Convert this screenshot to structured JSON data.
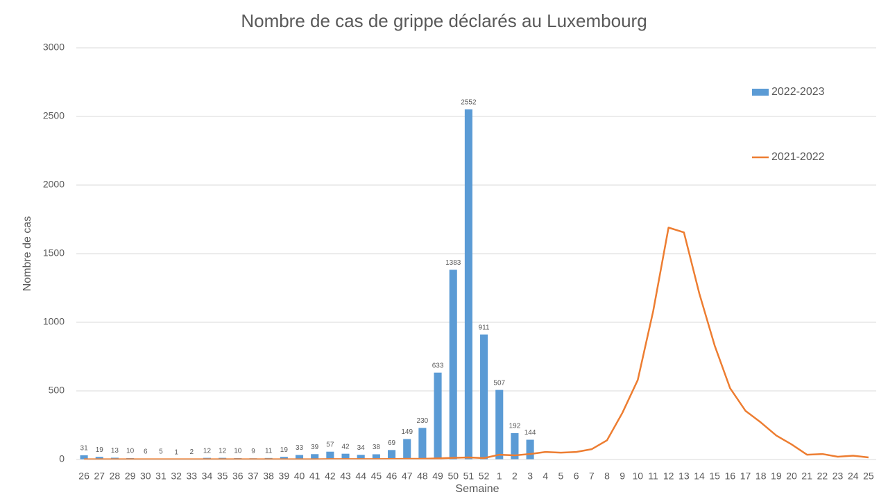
{
  "chart_data": {
    "type": "bar_line",
    "title": "Nombre de cas de grippe déclarés au Luxembourg",
    "x_label": "Semaine",
    "y_label": "Nombre de cas",
    "categories": [
      "26",
      "27",
      "28",
      "29",
      "30",
      "31",
      "32",
      "33",
      "34",
      "35",
      "36",
      "37",
      "38",
      "39",
      "40",
      "41",
      "42",
      "43",
      "44",
      "45",
      "46",
      "47",
      "48",
      "49",
      "50",
      "51",
      "52",
      "1",
      "2",
      "3",
      "4",
      "5",
      "6",
      "7",
      "8",
      "9",
      "10",
      "11",
      "12",
      "13",
      "14",
      "15",
      "16",
      "17",
      "18",
      "19",
      "20",
      "21",
      "22",
      "23",
      "24",
      "25"
    ],
    "series": [
      {
        "name": "2022-2023",
        "type": "bar",
        "color": "#5b9bd5",
        "values": [
          31,
          19,
          13,
          10,
          6,
          5,
          1,
          2,
          12,
          12,
          10,
          9,
          11,
          19,
          33,
          39,
          57,
          42,
          34,
          38,
          69,
          149,
          230,
          633,
          1383,
          2552,
          911,
          507,
          192,
          144,
          null,
          null,
          null,
          null,
          null,
          null,
          null,
          null,
          null,
          null,
          null,
          null,
          null,
          null,
          null,
          null,
          null,
          null,
          null,
          null,
          null,
          null
        ]
      },
      {
        "name": "2021-2022",
        "type": "line",
        "color": "#ed7d31",
        "values": [
          2,
          2,
          2,
          2,
          2,
          2,
          2,
          2,
          2,
          2,
          2,
          2,
          2,
          2,
          2,
          2,
          3,
          3,
          3,
          3,
          4,
          5,
          5,
          8,
          12,
          15,
          10,
          35,
          30,
          40,
          55,
          50,
          55,
          75,
          140,
          340,
          580,
          1080,
          1690,
          1655,
          1210,
          830,
          520,
          355,
          270,
          175,
          110,
          35,
          40,
          20,
          28,
          15
        ]
      }
    ],
    "ylim": [
      0,
      3000
    ],
    "yticks": [
      0,
      500,
      1000,
      1500,
      2000,
      2500,
      3000
    ],
    "grid": true,
    "legend": "right"
  }
}
